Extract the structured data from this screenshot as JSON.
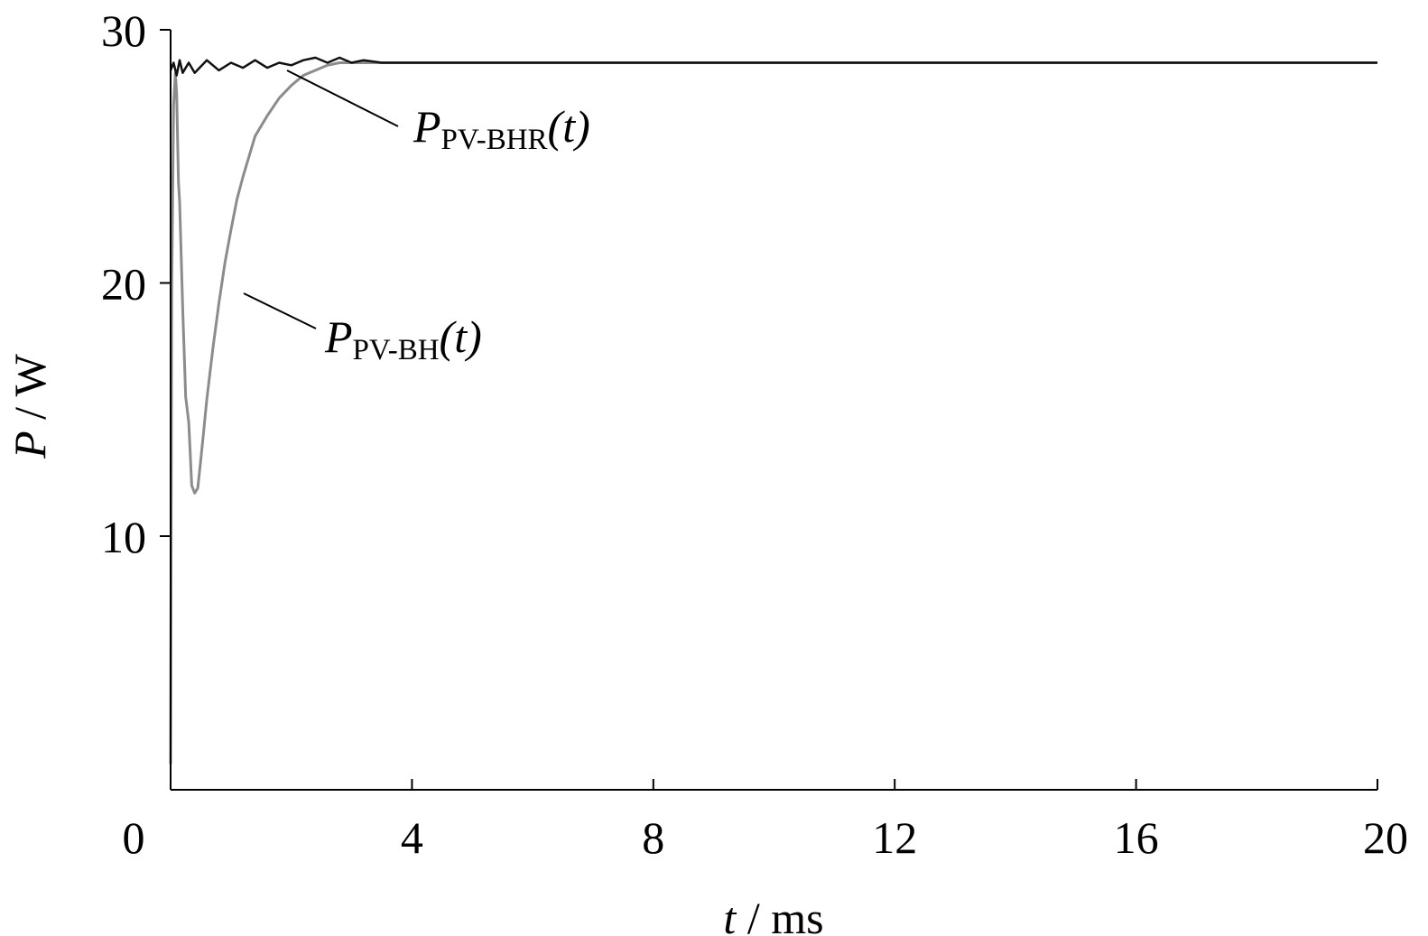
{
  "chart_data": {
    "type": "line",
    "xlabel": {
      "var": "t",
      "rest": " / ms"
    },
    "ylabel": {
      "var": "P",
      "rest": " / W"
    },
    "xlim": [
      0,
      20
    ],
    "ylim": [
      1,
      30
    ],
    "x_ticks": [
      "0",
      "4",
      "8",
      "12",
      "16",
      "20"
    ],
    "y_ticks": [
      "10",
      "20",
      "30"
    ],
    "grid": false,
    "series": [
      {
        "name": "PPV-BH(t)",
        "label_main": "P",
        "label_sub": "PV-BH",
        "label_arg": "(t)",
        "color": "#8c8c8c",
        "x": [
          0,
          0.02,
          0.05,
          0.08,
          0.1,
          0.13,
          0.15,
          0.2,
          0.25,
          0.3,
          0.33,
          0.35,
          0.4,
          0.45,
          0.5,
          0.55,
          0.6,
          0.7,
          0.8,
          0.9,
          1.0,
          1.1,
          1.2,
          1.3,
          1.4,
          1.6,
          1.8,
          2.0,
          2.2,
          2.4,
          2.6,
          2.8,
          3.0,
          3.2,
          3.4,
          3.6,
          3.8,
          4.0,
          5.0,
          8.0,
          12.0,
          16.0,
          20.0
        ],
        "y": [
          1.0,
          20.0,
          27.0,
          28.3,
          27.5,
          24.0,
          23.2,
          19.0,
          15.5,
          14.5,
          13.0,
          12.0,
          11.7,
          11.9,
          13.0,
          14.2,
          15.4,
          17.4,
          19.2,
          20.8,
          22.1,
          23.3,
          24.2,
          25.0,
          25.8,
          26.6,
          27.3,
          27.8,
          28.2,
          28.4,
          28.6,
          28.7,
          28.7,
          28.7,
          28.7,
          28.7,
          28.7,
          28.7,
          28.7,
          28.7,
          28.7,
          28.7,
          28.7
        ]
      },
      {
        "name": "PPV-BHR(t)",
        "label_main": "P",
        "label_sub": "PV-BHR",
        "label_arg": "(t)",
        "color": "#111111",
        "x": [
          0,
          0.05,
          0.1,
          0.15,
          0.2,
          0.3,
          0.4,
          0.6,
          0.8,
          1.0,
          1.2,
          1.4,
          1.6,
          1.8,
          2.0,
          2.1,
          2.2,
          2.4,
          2.6,
          2.8,
          3.0,
          3.2,
          3.5,
          4.0,
          6.0,
          10.0,
          14.0,
          18.0,
          20.0
        ],
        "y": [
          28.4,
          28.7,
          28.2,
          28.8,
          28.3,
          28.7,
          28.3,
          28.8,
          28.4,
          28.7,
          28.5,
          28.8,
          28.5,
          28.7,
          28.6,
          28.7,
          28.8,
          28.9,
          28.7,
          28.9,
          28.7,
          28.8,
          28.7,
          28.7,
          28.7,
          28.7,
          28.7,
          28.7,
          28.7
        ]
      }
    ]
  }
}
